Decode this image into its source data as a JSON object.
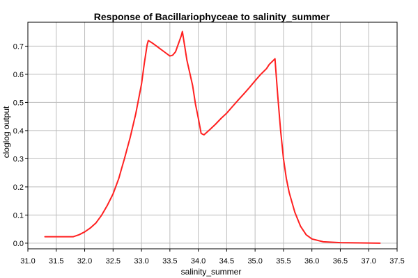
{
  "chart_data": {
    "type": "line",
    "title": "Response of Bacillariophyceae to salinity_summer",
    "xlabel": "salinity_summer",
    "ylabel": "cloglog output",
    "xlim": [
      31.0,
      37.5
    ],
    "ylim": [
      -0.02,
      0.785
    ],
    "xticks": [
      "31.0",
      "31.5",
      "32.0",
      "32.5",
      "33.0",
      "33.5",
      "34.0",
      "34.5",
      "35.0",
      "35.5",
      "36.0",
      "36.5",
      "37.0",
      "37.5"
    ],
    "yticks": [
      "0.0",
      "0.1",
      "0.2",
      "0.3",
      "0.4",
      "0.5",
      "0.6",
      "0.7"
    ],
    "grid": true,
    "series": [
      {
        "color": "#ff2020",
        "x": [
          31.3,
          31.5,
          31.8,
          31.9,
          32.0,
          32.1,
          32.2,
          32.3,
          32.4,
          32.5,
          32.6,
          32.65,
          32.7,
          32.8,
          32.9,
          33.0,
          33.05,
          33.1,
          33.12,
          33.2,
          33.3,
          33.4,
          33.5,
          33.55,
          33.6,
          33.7,
          33.72,
          33.8,
          33.9,
          33.95,
          34.0,
          34.05,
          34.1,
          34.2,
          34.3,
          34.4,
          34.5,
          34.6,
          34.7,
          34.8,
          34.9,
          35.0,
          35.1,
          35.2,
          35.25,
          35.3,
          35.35,
          35.4,
          35.45,
          35.5,
          35.55,
          35.6,
          35.7,
          35.8,
          35.9,
          36.0,
          36.2,
          36.5,
          37.2
        ],
        "y": [
          0.023,
          0.023,
          0.023,
          0.03,
          0.04,
          0.054,
          0.072,
          0.1,
          0.135,
          0.175,
          0.23,
          0.265,
          0.3,
          0.375,
          0.46,
          0.565,
          0.64,
          0.705,
          0.72,
          0.71,
          0.695,
          0.68,
          0.665,
          0.668,
          0.68,
          0.737,
          0.752,
          0.65,
          0.56,
          0.495,
          0.445,
          0.39,
          0.385,
          0.403,
          0.422,
          0.443,
          0.462,
          0.485,
          0.508,
          0.53,
          0.553,
          0.577,
          0.6,
          0.62,
          0.635,
          0.645,
          0.655,
          0.52,
          0.4,
          0.3,
          0.23,
          0.18,
          0.11,
          0.06,
          0.03,
          0.015,
          0.005,
          0.002,
          0.0
        ]
      }
    ]
  }
}
